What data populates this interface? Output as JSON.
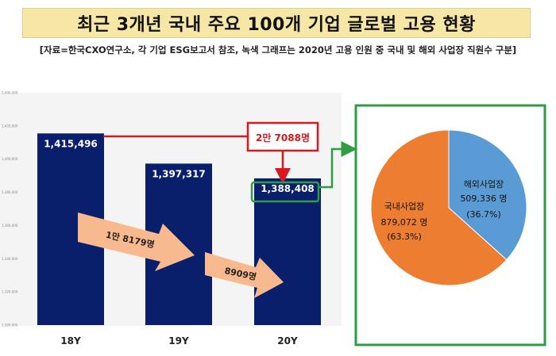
{
  "title": "최근 3개년 국내 주요 100개 기업 글로벌 고용 현황",
  "subtitle": "[자료=한국CXO연구소, 각 기업 ESG보고서 참조, 녹색 그래프는 2020년 고용 인원 중 국내 및 해외 사업장 직원수 구분]",
  "colors": {
    "bar": "#0a1f6b",
    "domestic": "#ed7d31",
    "overseas": "#5b9bd5",
    "highlight_red": "#d9181e",
    "highlight_green": "#2e9e44",
    "arrow": "#f9b98e"
  },
  "annotations": {
    "diff_total": "2만 7088명",
    "diff_first": "1만 8179명",
    "diff_second": "8909명"
  },
  "chart_data": [
    {
      "type": "bar",
      "categories": [
        "18Y",
        "19Y",
        "20Y"
      ],
      "values": [
        1415496,
        1397317,
        1388408
      ],
      "value_labels": [
        "1,415,496",
        "1,397,317",
        "1,388,408"
      ],
      "ylim": [
        1300000,
        1440000
      ],
      "ytick_labels": [
        "1,440,000",
        "1,420,000",
        "1,400,000",
        "1,380,000",
        "1,360,000",
        "1,340,000",
        "1,320,000",
        "1,300,000"
      ],
      "grid": false
    },
    {
      "type": "pie",
      "slices": [
        {
          "label": "해외사업장",
          "value": 509336,
          "value_label": "509,336 명",
          "percent": "(36.7%)"
        },
        {
          "label": "국내사업장",
          "value": 879072,
          "value_label": "879,072 명",
          "percent": "(63.3%)"
        }
      ]
    }
  ]
}
